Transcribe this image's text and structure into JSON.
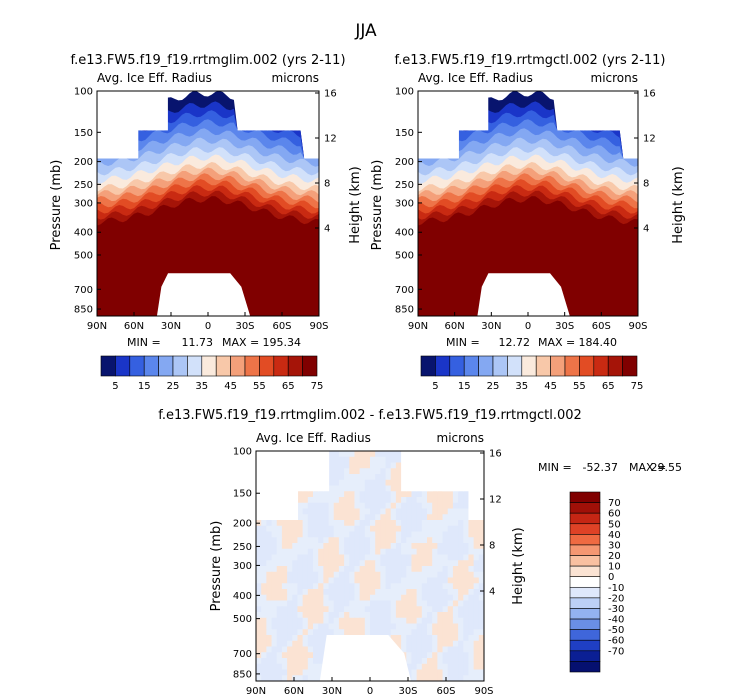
{
  "chart_data": [
    {
      "type": "heatmap",
      "panel": "left",
      "title": "f.e13.FW5.f19_f19.rrtmglim.002 (yrs 2-11)",
      "subtitle_left": "Avg. Ice Eff. Radius",
      "subtitle_right": "microns",
      "ylabel": "Pressure (mb)",
      "ylabel_right": "Height (km)",
      "xlabel": "",
      "x_ticks": [
        "90N",
        "60N",
        "30N",
        "0",
        "30S",
        "60S",
        "90S"
      ],
      "y_ticks": [
        "100",
        "150",
        "200",
        "250",
        "300",
        "400",
        "500",
        "700",
        "850"
      ],
      "y_right_ticks": [
        "16",
        "12",
        "8",
        "4"
      ],
      "ylim_mb": [
        100,
        900
      ],
      "min_label": "MIN =",
      "min_value": "11.73",
      "max_label": "MAX =",
      "max_value": "195.34",
      "colorbar_ticks": [
        "5",
        "15",
        "25",
        "35",
        "45",
        "55",
        "65",
        "75"
      ]
    },
    {
      "type": "heatmap",
      "panel": "right",
      "title": "f.e13.FW5.f19_f19.rrtmgctl.002 (yrs 2-11)",
      "subtitle_left": "Avg. Ice Eff. Radius",
      "subtitle_right": "microns",
      "ylabel": "Pressure (mb)",
      "ylabel_right": "Height (km)",
      "xlabel": "",
      "x_ticks": [
        "90N",
        "60N",
        "30N",
        "0",
        "30S",
        "60S",
        "90S"
      ],
      "y_ticks": [
        "100",
        "150",
        "200",
        "250",
        "300",
        "400",
        "500",
        "700",
        "850"
      ],
      "y_right_ticks": [
        "16",
        "12",
        "8",
        "4"
      ],
      "ylim_mb": [
        100,
        900
      ],
      "min_label": "MIN =",
      "min_value": "12.72",
      "max_label": "MAX =",
      "max_value": "184.40",
      "colorbar_ticks": [
        "5",
        "15",
        "25",
        "35",
        "45",
        "55",
        "65",
        "75"
      ]
    },
    {
      "type": "heatmap",
      "panel": "difference",
      "title": "f.e13.FW5.f19_f19.rrtmglim.002 - f.e13.FW5.f19_f19.rrtmgctl.002",
      "subtitle_left": "Avg. Ice Eff. Radius",
      "subtitle_right": "microns",
      "ylabel": "Pressure (mb)",
      "ylabel_right": "Height (km)",
      "xlabel": "",
      "x_ticks": [
        "90N",
        "60N",
        "30N",
        "0",
        "30S",
        "60S",
        "90S"
      ],
      "y_ticks": [
        "100",
        "150",
        "200",
        "250",
        "300",
        "400",
        "500",
        "700",
        "850"
      ],
      "y_right_ticks": [
        "16",
        "12",
        "8",
        "4"
      ],
      "ylim_mb": [
        100,
        900
      ],
      "min_label": "MIN =",
      "min_value": "-52.37",
      "max_label": "MAX =",
      "max_value": "29.55",
      "colorbar_ticks": [
        "70",
        "60",
        "50",
        "40",
        "30",
        "20",
        "10",
        "0",
        "-10",
        "-20",
        "-30",
        "-40",
        "-50",
        "-60",
        "-70"
      ]
    }
  ],
  "figure_title": "JJA",
  "colors": {
    "abs_scale": [
      "#08146e",
      "#1a35c8",
      "#3560e0",
      "#5b86ec",
      "#84a8f2",
      "#acc6f6",
      "#d2e1fa",
      "#faeadd",
      "#f8c8a9",
      "#f4a07a",
      "#ee7448",
      "#e24c24",
      "#c92a12",
      "#a51408",
      "#800000"
    ],
    "diff_scale": [
      "#800000",
      "#a01008",
      "#c52614",
      "#df4226",
      "#ef6a42",
      "#f59772",
      "#f9c0a1",
      "#fbe3d3",
      "#ffffff",
      "#dfe8fb",
      "#bcd0f6",
      "#93b2f0",
      "#6a8fe6",
      "#3f66da",
      "#1f3fc4",
      "#0b1f94",
      "#051070"
    ]
  }
}
